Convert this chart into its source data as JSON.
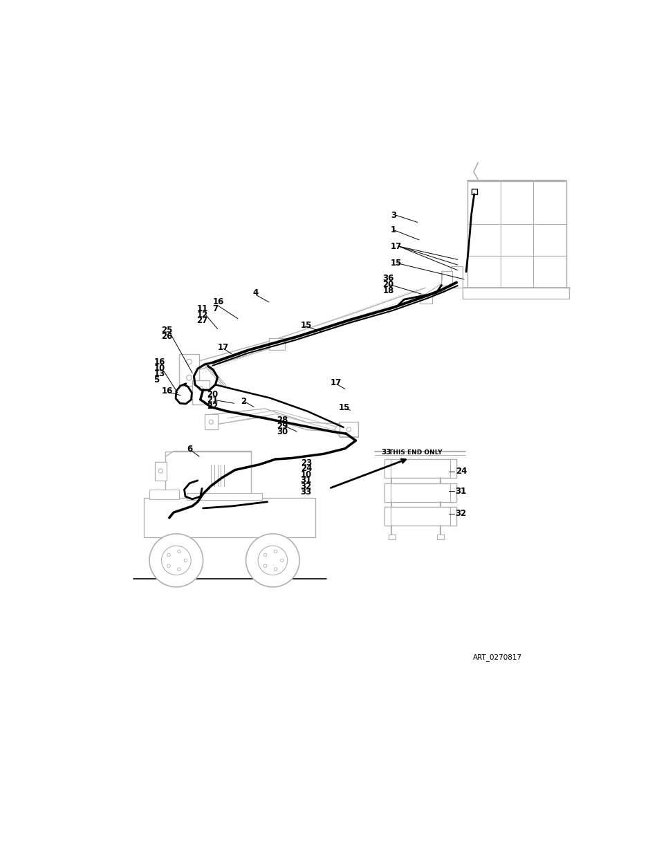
{
  "bg_color": "#ffffff",
  "lc": "#000000",
  "gray": "#b0b0b0",
  "art_number": "ART_0270817",
  "fs": 8.5,
  "fs_art": 7.5
}
